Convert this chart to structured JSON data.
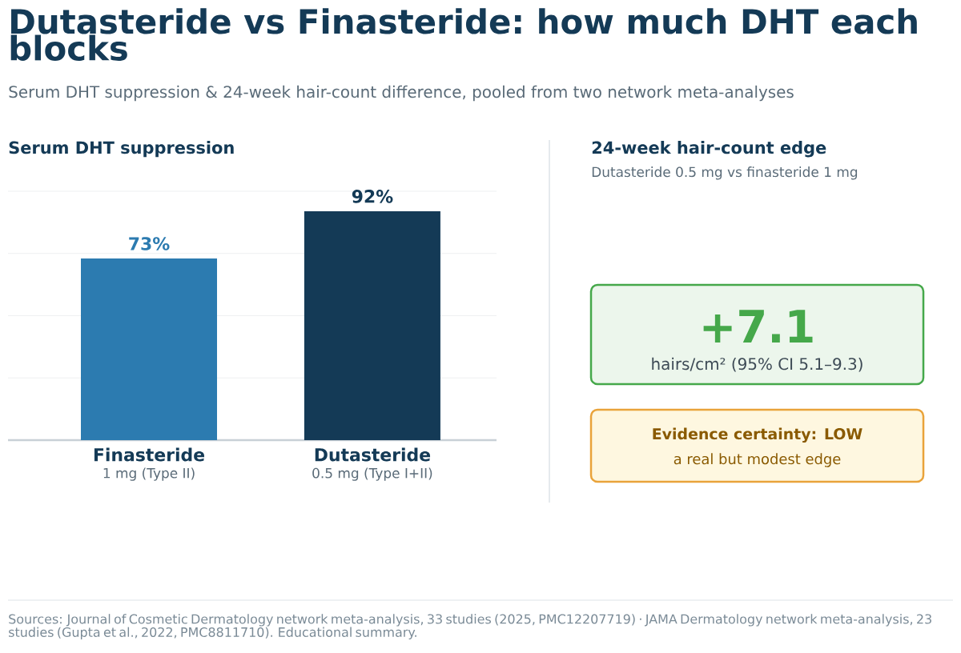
{
  "chart_data": [
    {
      "type": "other",
      "title": "Dutasteride vs Finasteride: how much DHT each blocks",
      "subtitle": "Serum DHT suppression & 24-week hair-count difference, pooled from two network meta-analyses",
      "annotations": [
        "Sources: Journal of Cosmetic Dermatology network meta-analysis, 33 studies (2025, PMC12207719) · JAMA Dermatology network meta-analysis, 23 studies (Gupta et al., 2022, PMC8811710). Educational summary."
      ]
    },
    {
      "type": "bar",
      "title": "Serum DHT suppression",
      "categories": [
        "Finasteride",
        "Dutasteride"
      ],
      "values": [
        73,
        92
      ],
      "colors": [
        "#2c7bb0",
        "#143a56"
      ],
      "value_labels": [
        "73%",
        "92%"
      ],
      "annotations": [
        "1 mg (Type II)",
        "0.5 mg (Type I+II)"
      ],
      "ylim": [
        0,
        100
      ],
      "yticks": [
        {
          "value": 25,
          "label": null
        },
        {
          "value": 50,
          "label": null
        },
        {
          "value": 75,
          "label": null
        },
        {
          "value": 100,
          "label": null
        }
      ],
      "tick_labels": "x",
      "grid": "y"
    },
    {
      "type": "other",
      "title": "24-week hair-count edge",
      "subtitle": "Dutasteride 0.5 mg vs finasteride 1 mg",
      "annotations": [
        "+7.1",
        "hairs/cm² (95% CI 5.1–9.3)",
        "Evidence certainty: LOW",
        "a real but modest edge"
      ]
    }
  ]
}
